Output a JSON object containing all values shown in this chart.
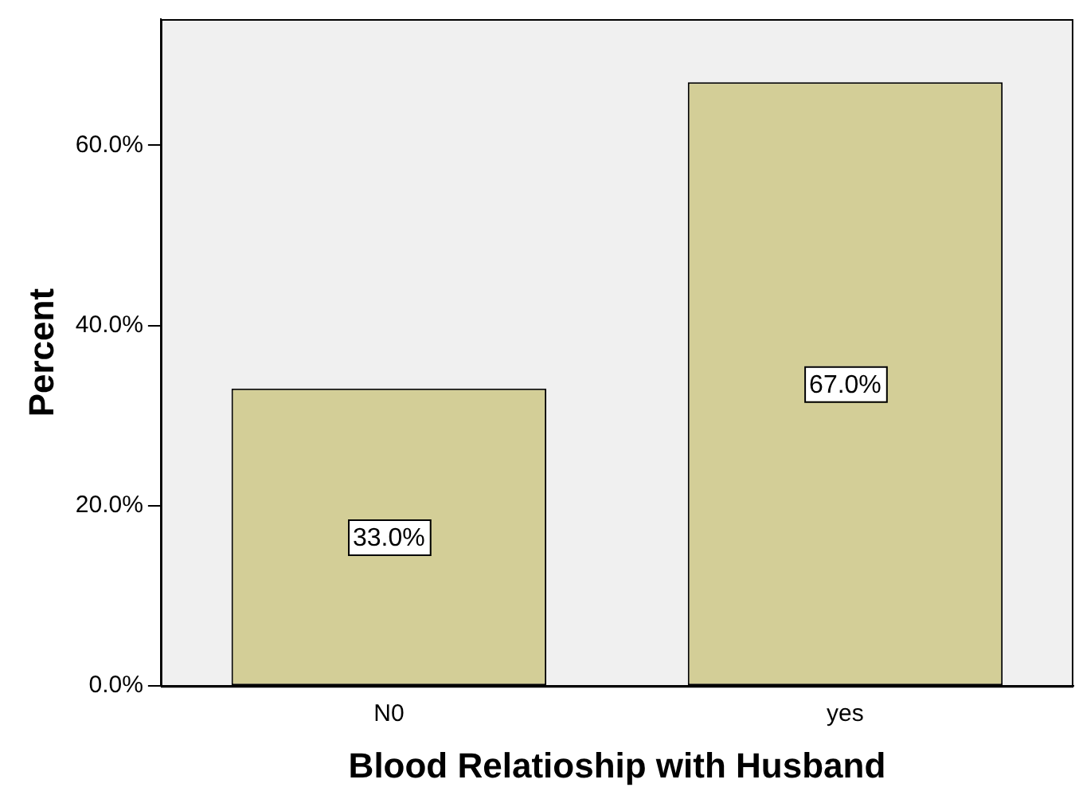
{
  "chart_data": {
    "type": "bar",
    "xlabel": "Blood Relatioship with Husband",
    "ylabel": "Percent",
    "categories": [
      "N0",
      "yes"
    ],
    "values": [
      33.0,
      67.0
    ],
    "color": "#d3ce97",
    "value_labels": [
      "33.0%",
      "67.0%"
    ],
    "ylim": [
      0,
      74
    ],
    "yticks": [
      {
        "value": 0,
        "label": "0.0%"
      },
      {
        "value": 20,
        "label": "20.0%"
      },
      {
        "value": 40,
        "label": "40.0%"
      },
      {
        "value": 60,
        "label": "60.0%"
      }
    ],
    "grid": false,
    "legend": false
  }
}
